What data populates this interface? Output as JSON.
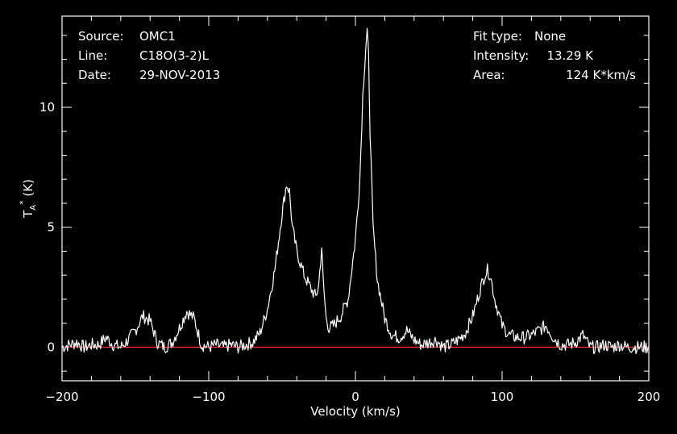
{
  "header_left": [
    {
      "key": "Source:",
      "value": "OMC1"
    },
    {
      "key": "Line:",
      "value": "C18O(3-2)L"
    },
    {
      "key": "Date:",
      "value": "29-NOV-2013"
    }
  ],
  "header_right": [
    {
      "key": "Fit type:",
      "value": "None"
    },
    {
      "key": "Intensity:",
      "value": "13.29 K"
    },
    {
      "key": "Area:",
      "value": "124 K*km/s"
    }
  ],
  "chart_data": {
    "type": "line",
    "xlabel": "Velocity (km/s)",
    "ylabel": "T_A^* (K)",
    "xlim": [
      -200,
      200
    ],
    "ylim": [
      -1.4,
      13.8
    ],
    "x_ticks": [
      -200,
      -100,
      0,
      100,
      200
    ],
    "x_tick_labels": [
      "−200",
      "−100",
      "0",
      "100",
      "200"
    ],
    "y_ticks": [
      0,
      5,
      10
    ],
    "y_tick_labels": [
      "0",
      "5",
      "10"
    ],
    "baseline": 0,
    "colors": {
      "spectrum": "#ffffff",
      "baseline": "#ff0000",
      "axes": "#ffffff",
      "background": "#000000"
    },
    "series": [
      {
        "x": [
          -200,
          -195,
          -190,
          -185,
          -180,
          -175,
          -170,
          -165,
          -160,
          -155,
          -150,
          -145,
          -140,
          -135,
          -130,
          -125,
          -120,
          -115,
          -110,
          -105,
          -100,
          -95,
          -90,
          -85,
          -80,
          -75,
          -70,
          -65,
          -60,
          -55,
          -50,
          -47,
          -45,
          -43,
          -40,
          -37,
          -35,
          -30,
          -27,
          -25,
          -23,
          -22,
          -20,
          -18,
          -15,
          -10,
          -5,
          0,
          3,
          5,
          7,
          8,
          9,
          10,
          12,
          15,
          20,
          25,
          30,
          35,
          40,
          45,
          50,
          55,
          60,
          65,
          70,
          75,
          80,
          85,
          88,
          90,
          92,
          95,
          100,
          105,
          110,
          115,
          120,
          125,
          130,
          135,
          140,
          145,
          150,
          155,
          160,
          165,
          170,
          175,
          180,
          185,
          190,
          195,
          200
        ],
        "y": [
          0.0,
          0.1,
          0.2,
          0.0,
          0.1,
          0.1,
          0.4,
          0.1,
          0.0,
          0.3,
          0.7,
          1.3,
          1.1,
          0.2,
          0.0,
          0.2,
          0.8,
          1.5,
          1.2,
          0.1,
          0.0,
          0.1,
          0.0,
          0.1,
          0.0,
          0.1,
          0.2,
          0.6,
          1.6,
          3.2,
          5.6,
          6.8,
          6.5,
          5.0,
          4.0,
          3.4,
          3.0,
          2.4,
          2.1,
          2.6,
          4.2,
          2.8,
          1.2,
          0.8,
          0.9,
          1.3,
          2.0,
          4.5,
          7.0,
          10.5,
          12.5,
          13.2,
          12.0,
          9.0,
          5.0,
          2.8,
          1.2,
          0.5,
          0.4,
          0.7,
          0.3,
          0.1,
          0.2,
          0.3,
          0.0,
          0.1,
          0.3,
          0.6,
          1.3,
          2.4,
          3.0,
          3.2,
          3.0,
          2.0,
          0.9,
          0.5,
          0.4,
          0.4,
          0.5,
          0.7,
          0.9,
          0.4,
          0.1,
          0.1,
          0.2,
          0.5,
          0.0,
          0.0,
          0.1,
          0.0,
          0.1,
          0.0,
          0.0,
          0.0,
          0.0
        ]
      }
    ]
  }
}
